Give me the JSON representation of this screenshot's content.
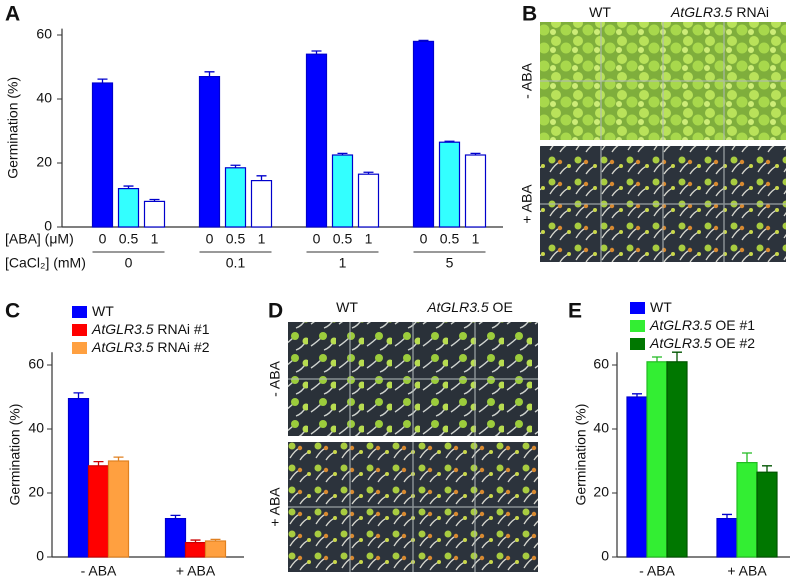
{
  "chart_data": [
    {
      "type": "bar",
      "letter": "A",
      "ylabel": "Germination (%)",
      "xlabel": "[ABA] (μM)",
      "xlabel2": "[CaCl₂] (mM)",
      "categories": [
        "0",
        "0.1",
        "1",
        "5"
      ],
      "series": [
        {
          "name": "0",
          "color": "#0000ff",
          "edgecolor": "#0000cc",
          "values": [
            45,
            47,
            54,
            58
          ],
          "errors": [
            1.2,
            1.5,
            1,
            0.3
          ]
        },
        {
          "name": "0.5",
          "color": "#33ffff",
          "edgecolor": "#0000cc",
          "values": [
            12,
            18.5,
            22.5,
            26.5
          ],
          "errors": [
            0.8,
            0.8,
            0.5,
            0.3
          ]
        },
        {
          "name": "1",
          "color": "#ffffff",
          "edgecolor": "#0000cc",
          "values": [
            8,
            14.5,
            16.5,
            22.5
          ],
          "errors": [
            0.6,
            1.5,
            0.6,
            0.5
          ]
        }
      ],
      "ylim": [
        0,
        62
      ],
      "yticks": [
        0,
        20,
        40,
        60
      ],
      "legend": false
    },
    {
      "type": "bar",
      "letter": "C",
      "ylabel": "Germination (%)",
      "categories": [
        "- ABA",
        "+ ABA"
      ],
      "series": [
        {
          "name": "WT",
          "color": "#0000ff",
          "edgecolor": "#0000cc",
          "values": [
            49.5,
            12
          ],
          "errors": [
            1.8,
            1
          ]
        },
        {
          "name": "AtGLR3.5 RNAi #1",
          "color": "#ff0000",
          "edgecolor": "#cc0000",
          "values": [
            28.5,
            4.5
          ],
          "errors": [
            1.3,
            0.8
          ]
        },
        {
          "name": "AtGLR3.5 RNAi #2",
          "color": "#ffa040",
          "edgecolor": "#e08020",
          "values": [
            30,
            5
          ],
          "errors": [
            1.2,
            0.5
          ]
        }
      ],
      "ylim": [
        0,
        64
      ],
      "yticks": [
        0,
        20,
        40,
        60
      ],
      "legend": true
    },
    {
      "type": "bar",
      "letter": "E",
      "ylabel": "Germination (%)",
      "categories": [
        "- ABA",
        "+ ABA"
      ],
      "series": [
        {
          "name": "WT",
          "color": "#0000ff",
          "edgecolor": "#0000cc",
          "values": [
            50,
            12
          ],
          "errors": [
            1,
            1.3
          ]
        },
        {
          "name": "AtGLR3.5 OE #1",
          "color": "#33ee33",
          "edgecolor": "#22bb22",
          "values": [
            61,
            29.5
          ],
          "errors": [
            1.5,
            3
          ]
        },
        {
          "name": "AtGLR3.5 OE #2",
          "color": "#007700",
          "edgecolor": "#005500",
          "values": [
            61,
            26.5
          ],
          "errors": [
            3,
            2
          ]
        }
      ],
      "ylim": [
        0,
        64
      ],
      "yticks": [
        0,
        20,
        40,
        60
      ],
      "legend": true
    }
  ],
  "photos": [
    {
      "letter": "B",
      "columns": [
        "WT",
        "AtGLR3.5 RNAi"
      ],
      "rows": [
        "- ABA",
        "+ ABA"
      ]
    },
    {
      "letter": "D",
      "columns": [
        "WT",
        "AtGLR3.5 OE"
      ],
      "rows": [
        "- ABA",
        "+ ABA"
      ]
    }
  ]
}
